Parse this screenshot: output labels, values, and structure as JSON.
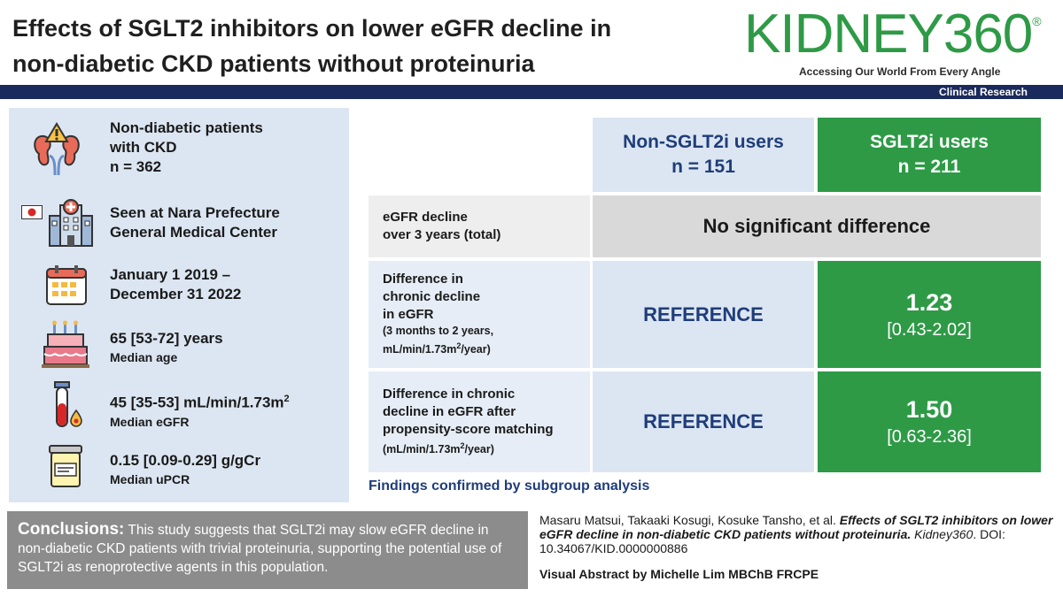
{
  "header": {
    "title_line1": "Effects of SGLT2 inhibitors on lower eGFR decline in",
    "title_line2": "non-diabetic CKD patients without proteinuria",
    "journal_logo": "KIDNEY360",
    "journal_reg": "®",
    "tagline": "Accessing Our World From Every Angle",
    "category": "Clinical Research"
  },
  "population": [
    {
      "icon": "kidney-warning-icon",
      "line1": "Non-diabetic patients",
      "line2": "with CKD",
      "line3": "n = 362"
    },
    {
      "icon": "hospital-icon",
      "flag": "japan-flag-icon",
      "line1": "Seen at Nara Prefecture",
      "line2": "General Medical Center"
    },
    {
      "icon": "calendar-icon",
      "line1": "January 1 2019 –",
      "line2": "December 31 2022"
    },
    {
      "icon": "birthday-cake-icon",
      "value": "65 [53-72] years",
      "label": "Median age"
    },
    {
      "icon": "blood-tube-icon",
      "value": "45 [35-53] mL/min/1.73m",
      "value_sup": "2",
      "label": "Median eGFR"
    },
    {
      "icon": "urine-cup-icon",
      "value": "0.15 [0.09-0.29] g/gCr",
      "label": "Median uPCR"
    }
  ],
  "table": {
    "col_non_sglt2": {
      "name": "Non-SGLT2i users",
      "n": "n = 151"
    },
    "col_sglt2": {
      "name": "SGLT2i users",
      "n": "n = 211"
    },
    "row1": {
      "label_line1": "eGFR decline",
      "label_line2": "over 3 years (total)",
      "result": "No significant difference"
    },
    "row2": {
      "label_line1": "Difference in",
      "label_line2": "chronic decline",
      "label_line3": "in eGFR",
      "sub_line1": "(3 months to 2 years,",
      "sub_line2_a": "mL/min/1.73m",
      "sub_line2_sup": "2",
      "sub_line2_b": "/year)",
      "reference": "REFERENCE",
      "value": "1.23",
      "ci": "[0.43-2.02]"
    },
    "row3": {
      "label_line1": "Difference in chronic",
      "label_line2": "decline in eGFR after",
      "label_line3": "propensity-score matching",
      "sub_a": "(mL/min/1.73m",
      "sub_sup": "2",
      "sub_b": "/year)",
      "reference": "REFERENCE",
      "value": "1.50",
      "ci": "[0.63-2.36]"
    },
    "findings": "Findings confirmed by subgroup analysis"
  },
  "conclusion": {
    "heading": "Conclusions:",
    "text": " This study suggests that SGLT2i may slow eGFR decline in non-diabetic CKD patients with trivial proteinuria, supporting the potential use of SGLT2i as renoprotective agents in this population."
  },
  "citation": {
    "authors": "Masaru Matsui, Takaaki Kosugi, Kosuke Tansho, et al. ",
    "title": "Effects of SGLT2 inhibitors on lower eGFR decline in non-diabetic CKD patients without proteinuria.",
    "journal": " Kidney360",
    "doi": ". DOI: 10.34067/KID.0000000886",
    "credit": "Visual Abstract by Michelle Lim MBChB FRCPE"
  },
  "colors": {
    "brand_green": "#2e9a46",
    "navy": "#1b2a5c",
    "panel_blue": "#dce6f2",
    "reference_text": "#1f3d7a"
  }
}
